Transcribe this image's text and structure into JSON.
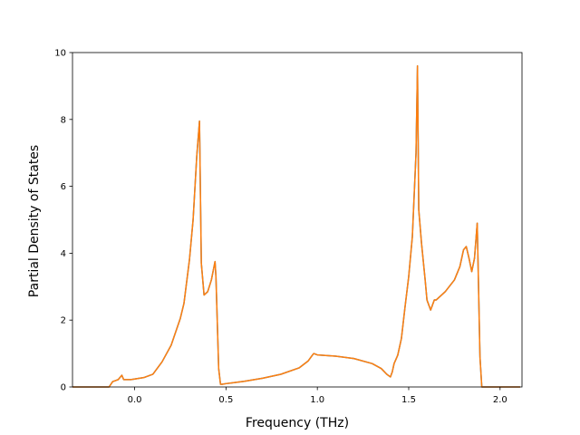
{
  "chart_data": {
    "type": "line",
    "title": "",
    "xlabel": "Frequency (THz)",
    "ylabel": "Partial Density of States",
    "xlim": [
      -0.34,
      2.12
    ],
    "ylim": [
      0,
      10
    ],
    "xticks": [
      0.0,
      0.5,
      1.0,
      1.5,
      2.0
    ],
    "xtick_labels": [
      "0.0",
      "0.5",
      "1.0",
      "1.5",
      "2.0"
    ],
    "yticks": [
      0,
      2,
      4,
      6,
      8,
      10
    ],
    "ytick_labels": [
      "0",
      "2",
      "4",
      "6",
      "8",
      "10"
    ],
    "grid": false,
    "legend": "none",
    "series": [
      {
        "color": "#1f77b4",
        "x": [
          -0.34,
          -0.14,
          -0.12,
          -0.09,
          -0.07,
          -0.06,
          -0.02,
          0.05,
          0.1,
          0.15,
          0.2,
          0.25,
          0.27,
          0.3,
          0.32,
          0.34,
          0.355,
          0.365,
          0.38,
          0.4,
          0.42,
          0.44,
          0.445,
          0.46,
          0.47,
          0.48,
          0.5,
          0.6,
          0.7,
          0.8,
          0.9,
          0.95,
          0.97,
          0.98,
          1.0,
          1.1,
          1.2,
          1.3,
          1.35,
          1.38,
          1.4,
          1.41,
          1.42,
          1.44,
          1.46,
          1.48,
          1.5,
          1.52,
          1.54,
          1.548,
          1.555,
          1.57,
          1.59,
          1.6,
          1.62,
          1.64,
          1.65,
          1.7,
          1.75,
          1.78,
          1.8,
          1.815,
          1.83,
          1.845,
          1.86,
          1.875,
          1.89,
          1.9,
          1.91,
          2.11
        ],
        "y": [
          0,
          0,
          0.16,
          0.22,
          0.35,
          0.22,
          0.22,
          0.28,
          0.38,
          0.75,
          1.25,
          2.05,
          2.5,
          3.8,
          5.0,
          6.9,
          7.95,
          3.7,
          2.75,
          2.85,
          3.2,
          3.75,
          3.3,
          0.55,
          0.08,
          0.08,
          0.1,
          0.17,
          0.26,
          0.38,
          0.57,
          0.78,
          0.93,
          1.0,
          0.96,
          0.92,
          0.85,
          0.7,
          0.55,
          0.38,
          0.3,
          0.45,
          0.7,
          0.95,
          1.45,
          2.4,
          3.3,
          4.5,
          7.0,
          9.6,
          5.3,
          4.3,
          3.2,
          2.6,
          2.3,
          2.6,
          2.6,
          2.85,
          3.2,
          3.6,
          4.1,
          4.2,
          3.85,
          3.45,
          3.85,
          4.9,
          0.9,
          0,
          0,
          0
        ]
      },
      {
        "color": "#ff7f0e",
        "x": [
          -0.34,
          -0.14,
          -0.12,
          -0.09,
          -0.07,
          -0.06,
          -0.02,
          0.05,
          0.1,
          0.15,
          0.2,
          0.25,
          0.27,
          0.3,
          0.32,
          0.34,
          0.355,
          0.365,
          0.38,
          0.4,
          0.42,
          0.44,
          0.445,
          0.46,
          0.47,
          0.48,
          0.5,
          0.6,
          0.7,
          0.8,
          0.9,
          0.95,
          0.97,
          0.98,
          1.0,
          1.1,
          1.2,
          1.3,
          1.35,
          1.38,
          1.4,
          1.41,
          1.42,
          1.44,
          1.46,
          1.48,
          1.5,
          1.52,
          1.54,
          1.548,
          1.555,
          1.57,
          1.59,
          1.6,
          1.62,
          1.64,
          1.65,
          1.7,
          1.75,
          1.78,
          1.8,
          1.815,
          1.83,
          1.845,
          1.86,
          1.875,
          1.89,
          1.9,
          1.91,
          2.11
        ],
        "y": [
          0,
          0,
          0.16,
          0.22,
          0.35,
          0.22,
          0.22,
          0.28,
          0.38,
          0.75,
          1.25,
          2.05,
          2.5,
          3.8,
          5.0,
          6.9,
          7.95,
          3.7,
          2.75,
          2.85,
          3.2,
          3.75,
          3.3,
          0.55,
          0.08,
          0.08,
          0.1,
          0.17,
          0.26,
          0.38,
          0.57,
          0.78,
          0.93,
          1.0,
          0.96,
          0.92,
          0.85,
          0.7,
          0.55,
          0.38,
          0.3,
          0.45,
          0.7,
          0.95,
          1.45,
          2.4,
          3.3,
          4.5,
          7.0,
          9.6,
          5.3,
          4.3,
          3.2,
          2.6,
          2.3,
          2.6,
          2.6,
          2.85,
          3.2,
          3.6,
          4.1,
          4.2,
          3.85,
          3.45,
          3.85,
          4.9,
          0.9,
          0,
          0,
          0
        ]
      }
    ]
  }
}
